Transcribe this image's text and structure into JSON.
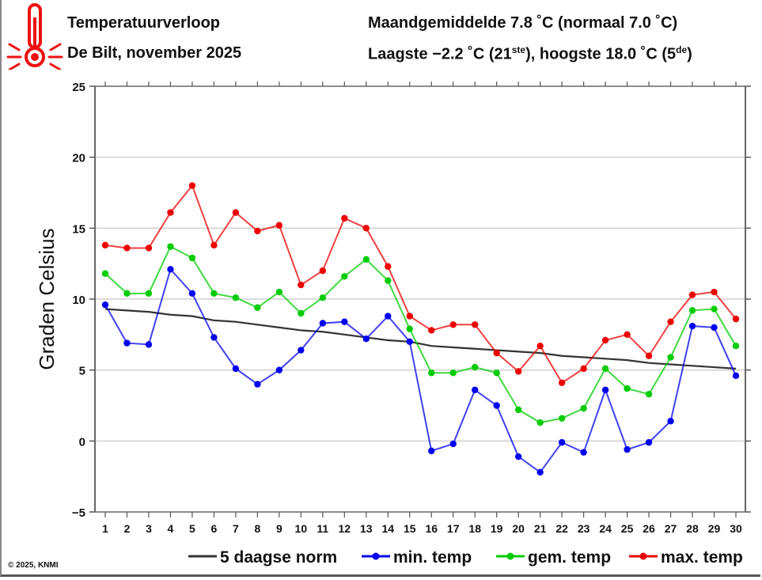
{
  "header": {
    "title": "Temperatuurverloop",
    "subtitle": "De Bilt, november 2025",
    "stats_line1": "Maandgemiddelde 7.8 ˚C (normaal 7.0 ˚C)",
    "stats_line2_pre": "Laagste −2.2 ˚C (21",
    "stats_line2_sup1": "ste",
    "stats_line2_mid": "), hoogste 18.0 ˚C (5",
    "stats_line2_sup2": "de",
    "stats_line2_post": ")",
    "icon": "thermometer-hot-icon"
  },
  "footer": {
    "copyright": "© 2025, KNMI"
  },
  "chart_data": {
    "type": "line",
    "title": "Temperatuurverloop",
    "subtitle": "De Bilt, november 2025",
    "xlabel": "",
    "ylabel": "Graden Celsius",
    "ylim": [
      -5,
      25
    ],
    "yticks": [
      "−5",
      "0",
      "5",
      "10",
      "15",
      "20",
      "25"
    ],
    "ytick_values": [
      -5,
      0,
      5,
      10,
      15,
      20,
      25
    ],
    "x": [
      1,
      2,
      3,
      4,
      5,
      6,
      7,
      8,
      9,
      10,
      11,
      12,
      13,
      14,
      15,
      16,
      17,
      18,
      19,
      20,
      21,
      22,
      23,
      24,
      25,
      26,
      27,
      28,
      29,
      30
    ],
    "grid": true,
    "legend_position": "bottom",
    "series": [
      {
        "name": "5 daagse norm",
        "color": "#333333",
        "markers": false,
        "values": [
          9.3,
          9.2,
          9.1,
          8.9,
          8.8,
          8.5,
          8.4,
          8.2,
          8.0,
          7.8,
          7.7,
          7.5,
          7.3,
          7.1,
          7.0,
          6.7,
          6.6,
          6.5,
          6.4,
          6.3,
          6.2,
          6.0,
          5.9,
          5.8,
          5.7,
          5.5,
          5.4,
          5.3,
          5.2,
          5.1
        ]
      },
      {
        "name": "min. temp",
        "color": "#0000ee",
        "markers": true,
        "values": [
          9.6,
          6.9,
          6.8,
          12.1,
          10.4,
          7.3,
          5.1,
          4.0,
          5.0,
          6.4,
          8.3,
          8.4,
          7.2,
          8.8,
          7.0,
          -0.7,
          -0.2,
          3.6,
          2.5,
          -1.1,
          -2.2,
          -0.1,
          -0.8,
          3.6,
          -0.6,
          -0.1,
          1.4,
          8.1,
          8.0,
          4.6
        ]
      },
      {
        "name": "gem. temp",
        "color": "#00cc00",
        "markers": true,
        "values": [
          11.8,
          10.4,
          10.4,
          13.7,
          12.9,
          10.4,
          10.1,
          9.4,
          10.5,
          9.0,
          10.1,
          11.6,
          12.8,
          11.3,
          7.9,
          4.8,
          4.8,
          5.2,
          4.8,
          2.2,
          1.3,
          1.6,
          2.3,
          5.1,
          3.7,
          3.3,
          5.9,
          9.2,
          9.3,
          6.7
        ]
      },
      {
        "name": "max. temp",
        "color": "#ee0000",
        "markers": true,
        "values": [
          13.8,
          13.6,
          13.6,
          16.1,
          18.0,
          13.8,
          16.1,
          14.8,
          15.2,
          11.0,
          12.0,
          15.7,
          15.0,
          12.3,
          8.8,
          7.8,
          8.2,
          8.2,
          6.2,
          4.9,
          6.7,
          4.1,
          5.1,
          7.1,
          7.5,
          6.0,
          8.4,
          10.3,
          10.5,
          8.6
        ]
      }
    ]
  }
}
